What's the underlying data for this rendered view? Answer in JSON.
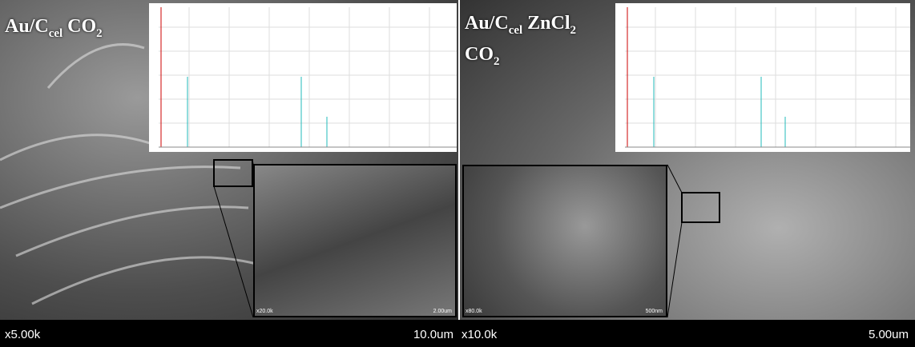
{
  "panels": [
    {
      "label": {
        "main": "Au/C",
        "sub1": "cel",
        "mid": " CO",
        "sub2": "2"
      },
      "magnification": "x5.00k",
      "scale": "10.0um",
      "inset": {
        "magnification": "x20.0k",
        "scale": "2.00um"
      }
    },
    {
      "label": {
        "main": "Au/C",
        "sub1": "cel",
        "mid": " ZnCl",
        "sub2": "2",
        "line2": "CO",
        "sub3": "2"
      },
      "magnification": "x10.0k",
      "scale": "5.00um",
      "inset": {
        "magnification": "x80.0k",
        "scale": "500nm"
      }
    }
  ]
}
